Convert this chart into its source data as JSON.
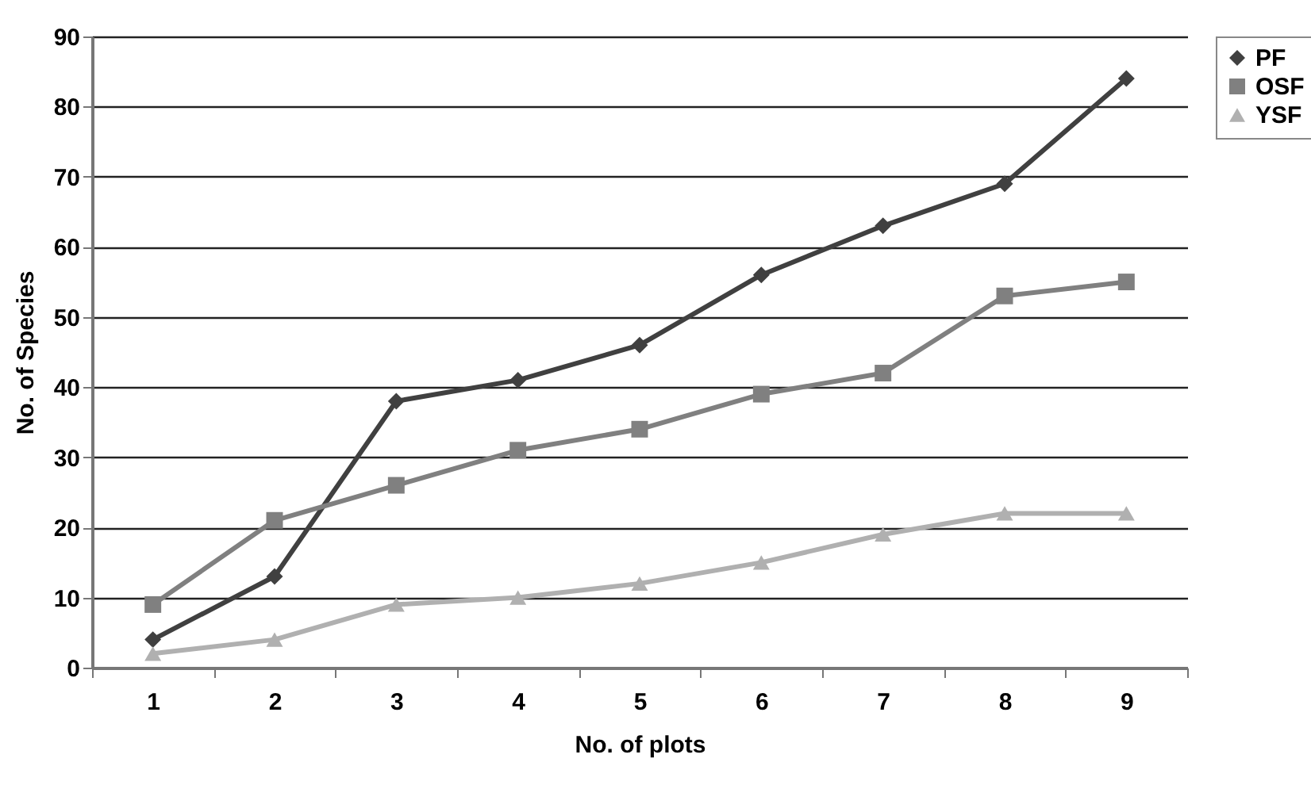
{
  "chart_data": {
    "type": "line",
    "xlabel": "No. of plots",
    "ylabel": "No. of Species",
    "categories": [
      "1",
      "2",
      "3",
      "4",
      "5",
      "6",
      "7",
      "8",
      "9"
    ],
    "series": [
      {
        "name": "PF",
        "color": "#404040",
        "marker": "diamond",
        "values": [
          4,
          13,
          38,
          41,
          46,
          56,
          63,
          69,
          84
        ]
      },
      {
        "name": "OSF",
        "color": "#808080",
        "marker": "square",
        "values": [
          9,
          21,
          26,
          31,
          34,
          39,
          42,
          53,
          55
        ]
      },
      {
        "name": "YSF",
        "color": "#b0b0b0",
        "marker": "triangle",
        "values": [
          2,
          4,
          9,
          10,
          12,
          15,
          19,
          22,
          22
        ]
      }
    ],
    "ylim": [
      0,
      90
    ],
    "yticks": [
      0,
      10,
      20,
      30,
      40,
      50,
      60,
      70,
      80,
      90
    ],
    "grid": "y",
    "legend": "right",
    "line_style": "solid"
  }
}
